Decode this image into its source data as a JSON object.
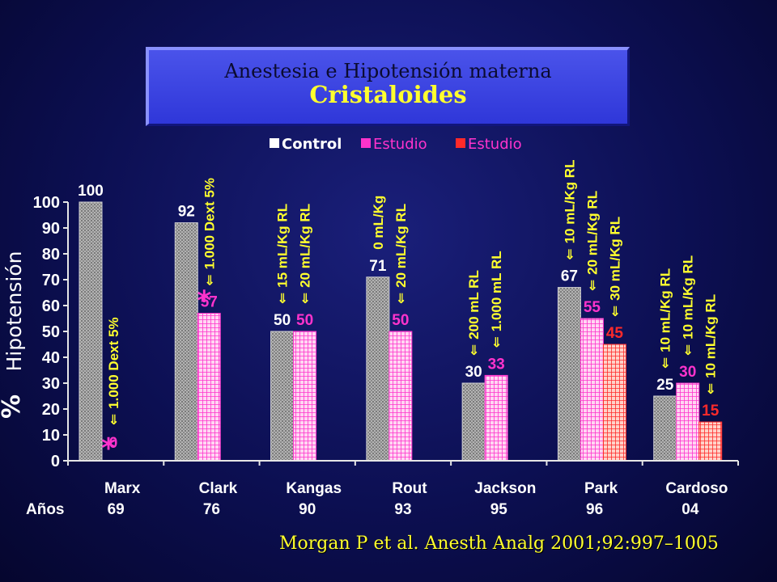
{
  "title": {
    "line1": "Anestesia e Hipotensión materna",
    "line2": "Cristaloides"
  },
  "citation": "Morgan P  et   al. Anesth Analg 2001;92:997–1005",
  "colors": {
    "control": "#a8a8a8",
    "estudio1": "#ff33cc",
    "estudio2": "#ff2a2a",
    "accent_text": "#ffff2e",
    "label_white": "#ffffff",
    "label_pink": "#ff33cc",
    "label_red": "#ff2a2a"
  },
  "chart_data": {
    "type": "bar",
    "ylabel": "Hipotensión",
    "ylabel_symbol": "%",
    "ylim": [
      0,
      100
    ],
    "yticks": [
      "0",
      "10",
      "20",
      "30",
      "40",
      "50",
      "60",
      "70",
      "80",
      "90",
      "100"
    ],
    "grid": false,
    "legend_position": "top",
    "legend": [
      "Control",
      "Estudio",
      "Estudio"
    ],
    "years_label": "Años",
    "categories": [
      "Marx",
      "Clark",
      "Kangas",
      "Rout",
      "Jackson",
      "Park",
      "Cardoso"
    ],
    "years": [
      "69",
      "76",
      "90",
      "93",
      "95",
      "96",
      "04"
    ],
    "series": [
      {
        "name": "Control",
        "values": [
          100,
          92,
          50,
          71,
          30,
          67,
          25
        ],
        "labels": [
          "100",
          "92",
          "50",
          "71",
          "30",
          "67",
          "25"
        ]
      },
      {
        "name": "Estudio",
        "values": [
          0,
          57,
          50,
          50,
          33,
          55,
          30
        ],
        "labels": [
          "0",
          "57",
          "50",
          "50",
          "33",
          "55",
          "30"
        ]
      },
      {
        "name": "Estudio",
        "values": [
          null,
          null,
          null,
          null,
          null,
          45,
          15
        ],
        "labels": [
          "",
          "",
          "",
          "",
          "",
          "45",
          "15"
        ]
      }
    ],
    "annotations": [
      {
        "group": 0,
        "series": 1,
        "text": "1.000 Dext 5%",
        "arrow": "⇐",
        "star": true
      },
      {
        "group": 1,
        "series": 1,
        "text": "1.000 Dext 5%",
        "arrow": "⇐",
        "star": true
      },
      {
        "group": 2,
        "series": 0,
        "text": "15 mL/Kg RL",
        "arrow": "⇐",
        "star": false
      },
      {
        "group": 2,
        "series": 1,
        "text": "20 mL/Kg RL",
        "arrow": "⇐",
        "star": false
      },
      {
        "group": 3,
        "series": 0,
        "text": "0 mL/Kg",
        "arrow": "",
        "star": false
      },
      {
        "group": 3,
        "series": 1,
        "text": "20 mL/Kg RL",
        "arrow": "⇐",
        "star": false
      },
      {
        "group": 4,
        "series": 0,
        "text": "200 mL  RL",
        "arrow": "⇐",
        "star": false
      },
      {
        "group": 4,
        "series": 1,
        "text": "1.000 mL  RL",
        "arrow": "⇐",
        "star": false
      },
      {
        "group": 5,
        "series": 0,
        "text": "10 mL/Kg RL",
        "arrow": "⇐",
        "star": false
      },
      {
        "group": 5,
        "series": 1,
        "text": "20 mL/Kg RL",
        "arrow": "⇐",
        "star": false
      },
      {
        "group": 5,
        "series": 2,
        "text": "30 mL/Kg RL",
        "arrow": "⇐",
        "star": false
      },
      {
        "group": 6,
        "series": 0,
        "text": "10 mL/Kg RL",
        "arrow": "⇐",
        "star": false
      },
      {
        "group": 6,
        "series": 1,
        "text": "10 mL/Kg RL",
        "arrow": "⇐",
        "star": false
      },
      {
        "group": 6,
        "series": 2,
        "text": "10 mL/Kg RL",
        "arrow": "⇐",
        "star": false
      }
    ]
  }
}
